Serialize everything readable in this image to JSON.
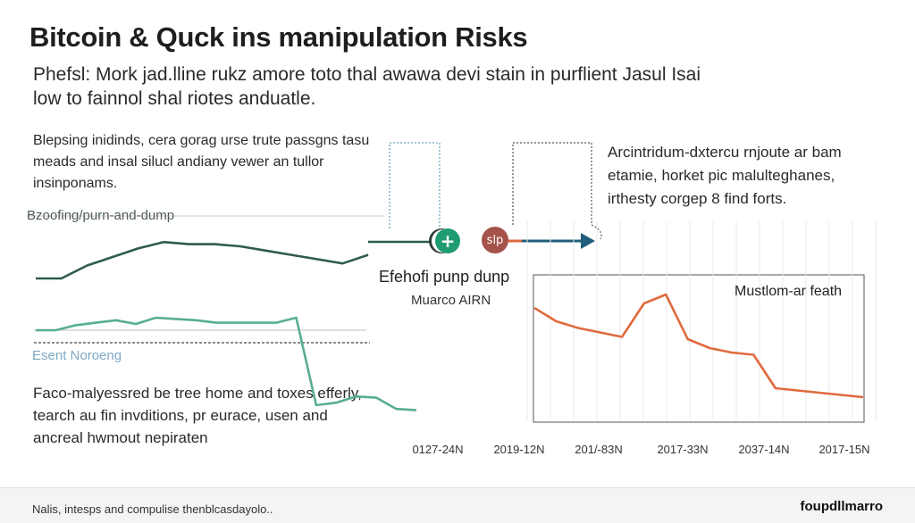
{
  "title": "Bitcoin & Quck ins manipulation Risks",
  "subtitle": "Phefsl: Mork jad.lline rukz amore toto thal awawa devi stain in purflient Jasul Isai low to fainnol shal riotes anduatle.",
  "left_paragraph": "Blepsing inidinds, cera gorag urse trute passgns tasu meads and insal silucl andiany vewer an tullor insinponams.",
  "right_paragraph": "Arcintridum-dxtercu rnjoute ar bam etamie, horket pic malulteghanes, irthesty corgep 8 find forts.",
  "bottom_paragraph": "Faco-malyessred be tree home and toxes efferly, tearch au fin invditions, pr eurace, usen and ancreal hwmout nepiraten",
  "labels": {
    "spoofing": "Bzoofing/purn-and-dump",
    "noise": "Esent Noroeng",
    "pump": "Efehofi punp dunp",
    "source": "Muarco AIRN",
    "inset": "Mustlom-ar feath",
    "slp_badge": "slp",
    "plus_badge": "+"
  },
  "footer": {
    "note": "Nalis, intesps and compulise thenblcasdayolo..",
    "brand": "foupdllmarro"
  },
  "colors": {
    "dark_line": "#2f5c4b",
    "teal_line": "#57ad94",
    "orange_line": "#e06a3e",
    "arrow": "#1f5f7a",
    "plus_badge": "#1f9c70",
    "slp_badge": "#a5524a"
  },
  "chart_data": {
    "type": "line",
    "x_tick_labels": [
      "0127-24N",
      "2019-12N",
      "201/-83N",
      "2017-33N",
      "2037-14N",
      "2017-15N"
    ],
    "series": [
      {
        "name": "Bzoofing/purn-and-dump",
        "color": "#2f5c4b",
        "x": [
          0,
          1,
          2,
          3,
          4,
          5,
          6,
          7,
          8,
          9,
          10,
          11,
          12,
          13
        ],
        "values": [
          42,
          42,
          48,
          52,
          56,
          59,
          58,
          58,
          57,
          55,
          53,
          51,
          49,
          53
        ]
      },
      {
        "name": "Esent Noroeng",
        "color": "#57ad94",
        "x": [
          0,
          1,
          2,
          3,
          4,
          5,
          6,
          7,
          8,
          9,
          10,
          11,
          12,
          13,
          14,
          15,
          16,
          17,
          18,
          19
        ],
        "values": [
          20,
          20,
          24,
          26,
          28,
          25,
          30,
          29,
          28,
          26,
          26,
          26,
          26,
          30,
          -40,
          -38,
          -33,
          -34,
          -43,
          -44
        ]
      },
      {
        "name": "Mustlom-ar feath",
        "color": "#e06a3e",
        "x": [
          0,
          1,
          2,
          3,
          4,
          5,
          6,
          7,
          8,
          9,
          10,
          11,
          12,
          13,
          14,
          15
        ],
        "values": [
          58,
          52,
          49,
          47,
          45,
          60,
          64,
          44,
          40,
          38,
          37,
          22,
          21,
          20,
          19,
          18
        ]
      }
    ]
  }
}
